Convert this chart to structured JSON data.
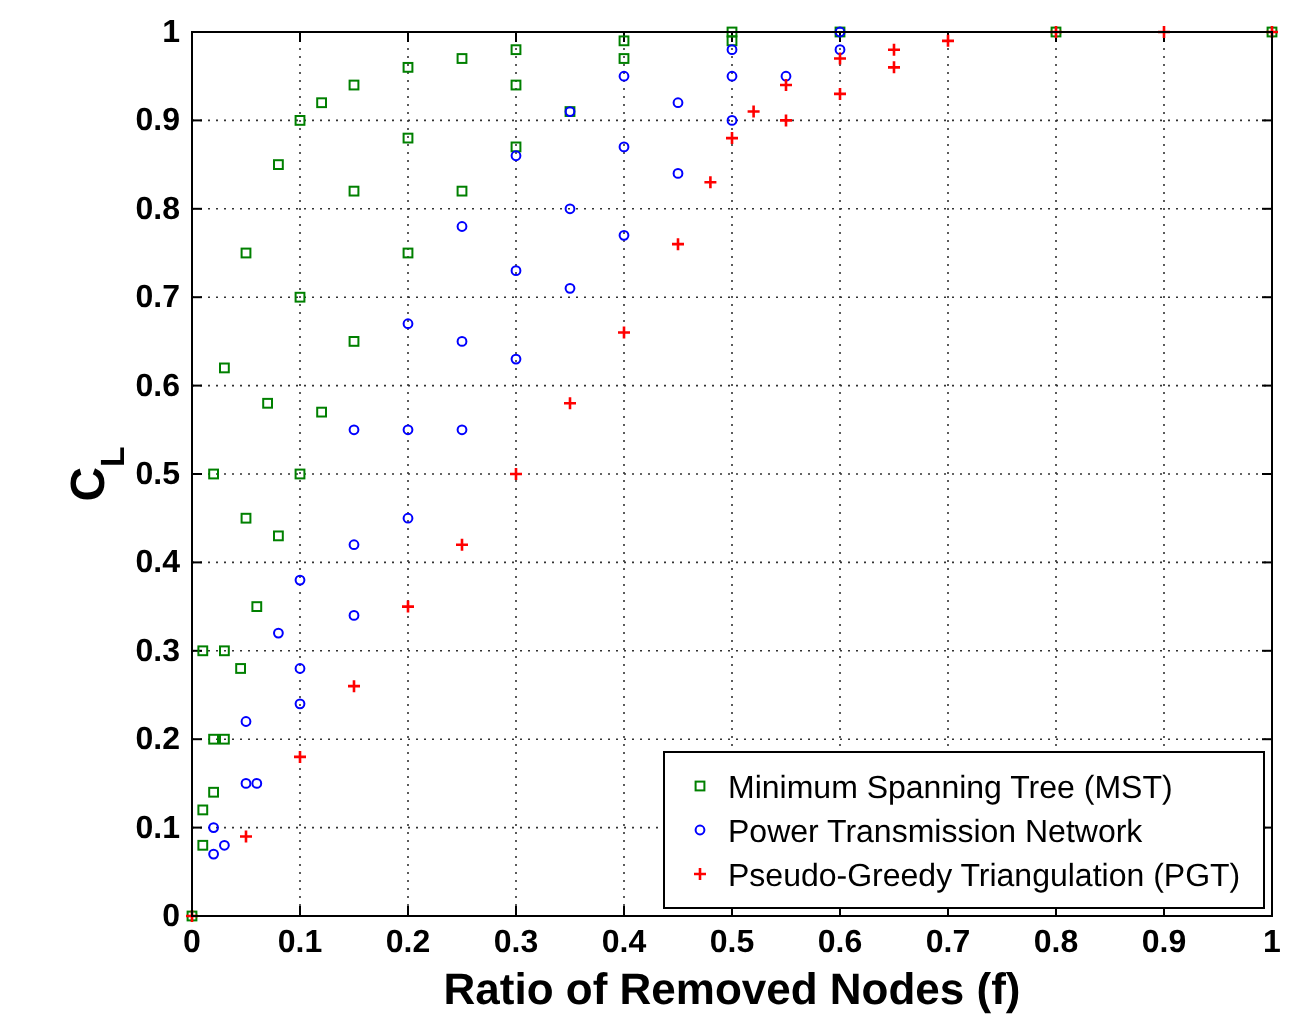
{
  "chart_data": {
    "type": "scatter",
    "xlabel": "Ratio of Removed Nodes (f)",
    "ylabel": "C$_{L}$",
    "xlim": [
      0,
      1
    ],
    "ylim": [
      0,
      1
    ],
    "xticks": [
      0,
      0.1,
      0.2,
      0.3,
      0.4,
      0.5,
      0.6,
      0.7,
      0.8,
      0.9,
      1
    ],
    "yticks": [
      0,
      0.1,
      0.2,
      0.3,
      0.4,
      0.5,
      0.6,
      0.7,
      0.8,
      0.9,
      1
    ],
    "grid": true,
    "legend": "bottom right",
    "series": [
      {
        "name": "Minimum Spanning Tree (MST)",
        "color": "#008000",
        "marker": "square",
        "x": [
          0,
          0.01,
          0.02,
          0.03,
          0.05,
          0.08,
          0.1,
          0.12,
          0.15,
          0.2,
          0.25,
          0.3,
          0.4,
          0.5,
          0.6,
          0.8,
          1,
          0.01,
          0.02,
          0.03,
          0.05,
          0.07,
          0.1,
          0.15,
          0.2,
          0.3,
          0.4,
          0.5,
          0.01,
          0.02,
          0.03,
          0.045,
          0.06,
          0.08,
          0.1,
          0.12,
          0.15,
          0.2,
          0.25,
          0.3,
          0.35
        ],
        "values": [
          0,
          0.3,
          0.5,
          0.62,
          0.75,
          0.85,
          0.9,
          0.92,
          0.94,
          0.96,
          0.97,
          0.98,
          0.99,
          1,
          1,
          1,
          1,
          0.12,
          0.2,
          0.3,
          0.45,
          0.58,
          0.7,
          0.82,
          0.88,
          0.94,
          0.97,
          0.99,
          0.08,
          0.14,
          0.2,
          0.28,
          0.35,
          0.43,
          0.5,
          0.57,
          0.65,
          0.75,
          0.82,
          0.87,
          0.91
        ]
      },
      {
        "name": "Power Transmission Network",
        "color": "#0000ff",
        "marker": "circle",
        "x": [
          0.02,
          0.05,
          0.08,
          0.1,
          0.15,
          0.2,
          0.25,
          0.3,
          0.35,
          0.4,
          0.5,
          0.6,
          0.02,
          0.05,
          0.1,
          0.15,
          0.2,
          0.25,
          0.3,
          0.35,
          0.4,
          0.45,
          0.5,
          0.03,
          0.06,
          0.1,
          0.15,
          0.2,
          0.25,
          0.3,
          0.35,
          0.4,
          0.45,
          0.5,
          0.55,
          0.6
        ],
        "values": [
          0.1,
          0.22,
          0.32,
          0.38,
          0.55,
          0.67,
          0.78,
          0.86,
          0.91,
          0.95,
          0.98,
          1,
          0.07,
          0.15,
          0.28,
          0.42,
          0.55,
          0.65,
          0.73,
          0.8,
          0.87,
          0.92,
          0.95,
          0.08,
          0.15,
          0.24,
          0.34,
          0.45,
          0.55,
          0.63,
          0.71,
          0.77,
          0.84,
          0.9,
          0.95,
          0.98
        ]
      },
      {
        "name": "Pseudo-Greedy Triangulation (PGT)",
        "color": "#ff0000",
        "marker": "cross",
        "x": [
          0,
          0.05,
          0.1,
          0.15,
          0.2,
          0.25,
          0.3,
          0.35,
          0.4,
          0.45,
          0.48,
          0.5,
          0.52,
          0.55,
          0.6,
          0.65,
          0.7,
          0.8,
          0.9,
          1,
          0.55,
          0.6,
          0.65
        ],
        "values": [
          0,
          0.09,
          0.18,
          0.26,
          0.35,
          0.42,
          0.5,
          0.58,
          0.66,
          0.76,
          0.83,
          0.88,
          0.91,
          0.94,
          0.97,
          0.98,
          0.99,
          1,
          1,
          1,
          0.9,
          0.93,
          0.96
        ]
      }
    ]
  }
}
